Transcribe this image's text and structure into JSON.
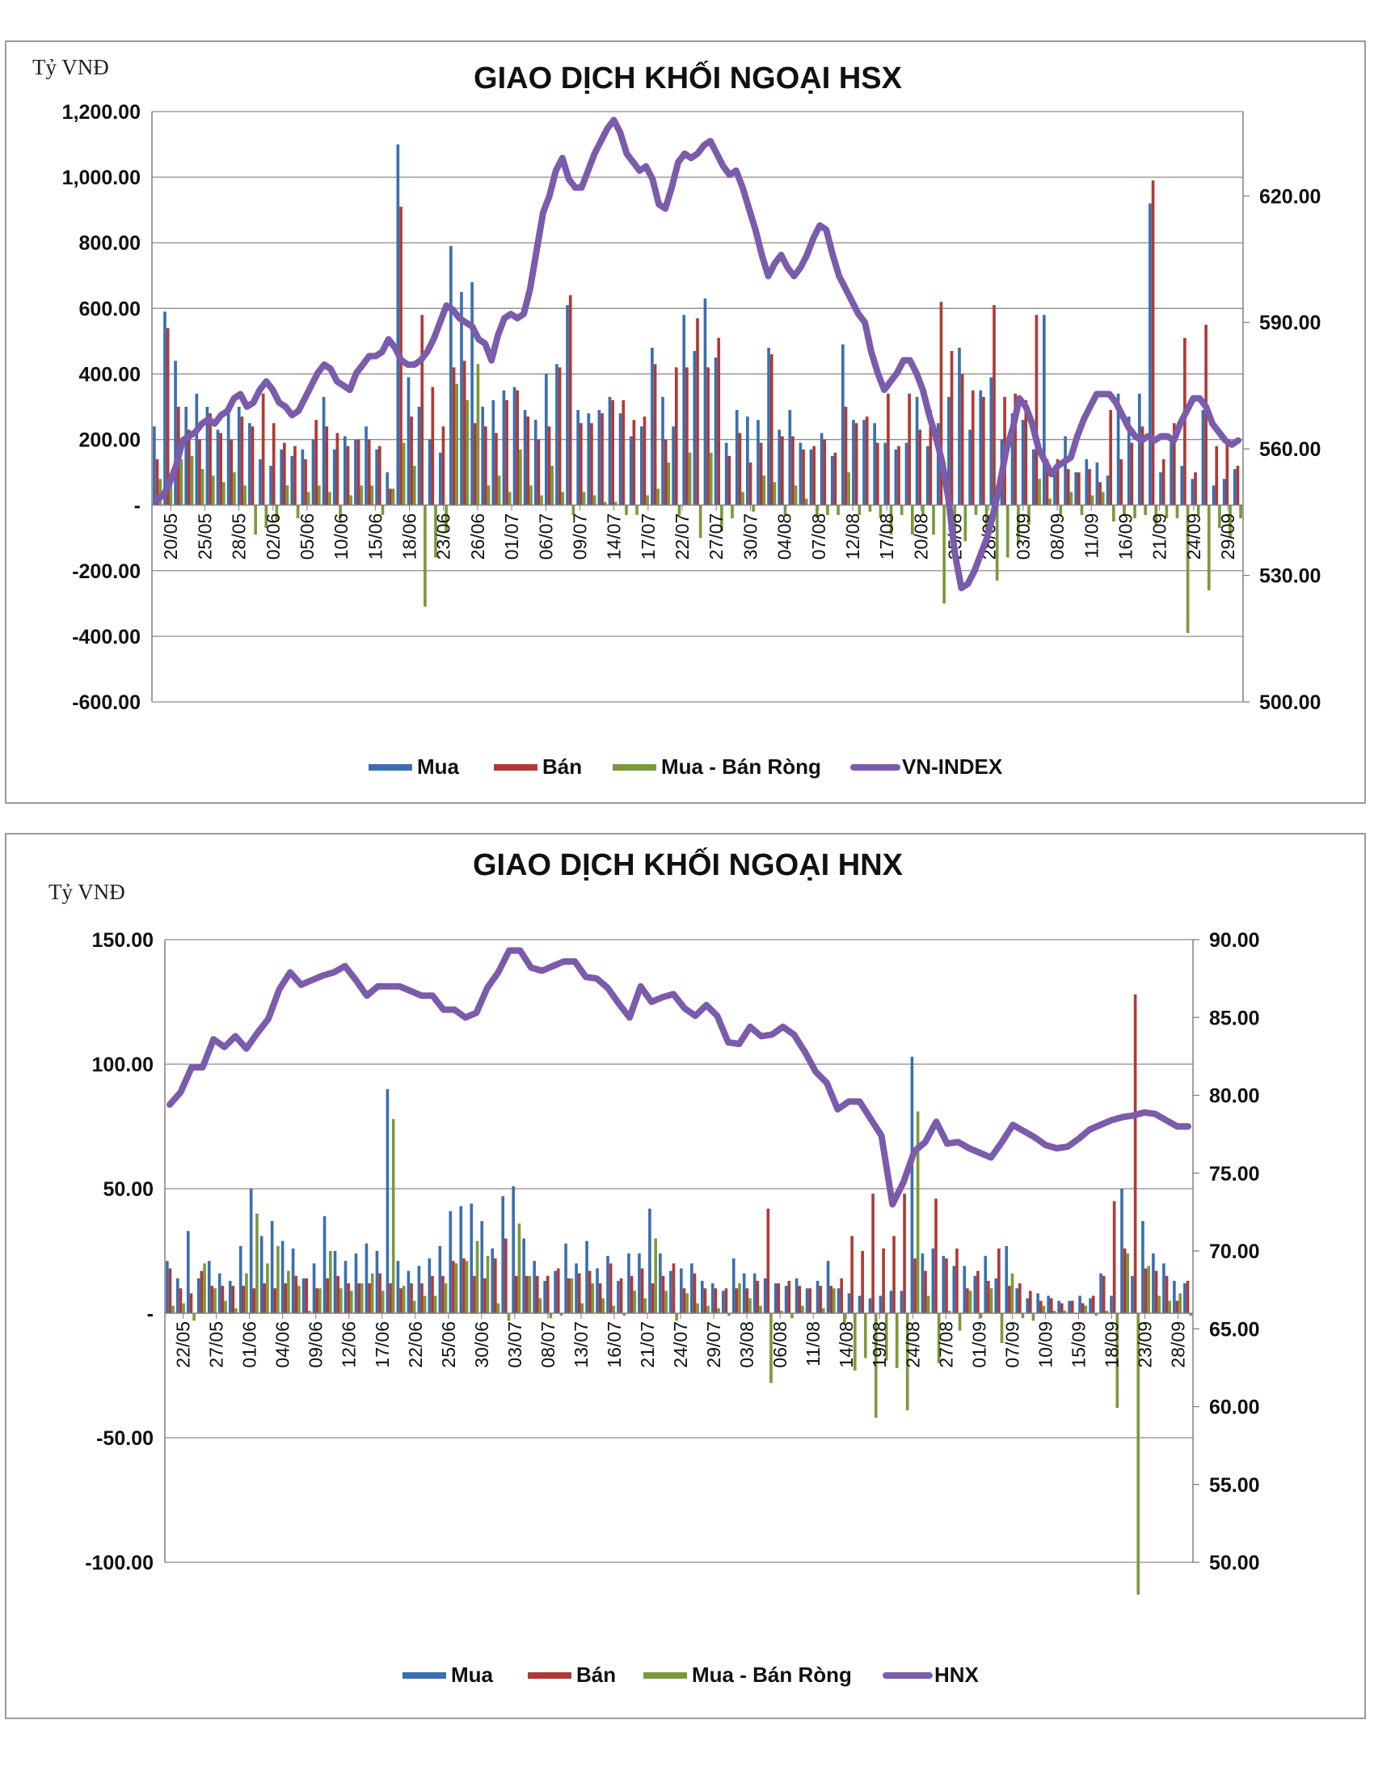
{
  "colors": {
    "mua": "#3a6fb0",
    "ban": "#b03a36",
    "rong": "#7a9a3a",
    "index": "#7b5bab",
    "grid": "#8c8c8c",
    "axis": "#808080"
  },
  "chart_data": [
    {
      "type": "bar",
      "title": "GIAO DỊCH KHỐI NGOẠI HSX",
      "unit_label": "Tỷ VNĐ",
      "ylim": [
        -600,
        1200
      ],
      "y_ticks": [
        -600,
        -400,
        -200,
        0,
        200,
        400,
        600,
        800,
        1000,
        1200
      ],
      "y_tick_labels": [
        "-600.00",
        "-400.00",
        "-200.00",
        "-",
        "200.00",
        "400.00",
        "600.00",
        "800.00",
        "1,000.00",
        "1,200.00"
      ],
      "y2lim": [
        500,
        640
      ],
      "y2_ticks": [
        500,
        530,
        560,
        590,
        620
      ],
      "y2_tick_labels": [
        "500.00",
        "530.00",
        "560.00",
        "590.00",
        "620.00"
      ],
      "x_tick_labels": [
        "20/05",
        "25/05",
        "28/05",
        "02/06",
        "05/06",
        "10/06",
        "15/06",
        "18/06",
        "23/06",
        "26/06",
        "01/07",
        "06/07",
        "09/07",
        "14/07",
        "17/07",
        "22/07",
        "27/07",
        "30/07",
        "04/08",
        "07/08",
        "12/08",
        "17/08",
        "20/08",
        "25/08",
        "28/08",
        "03/09",
        "08/09",
        "11/09",
        "16/09",
        "21/09",
        "24/09",
        "29/09"
      ],
      "grid": true,
      "legend_position": "bottom",
      "legend": [
        "Mua",
        "Bán",
        "Mua - Bán Ròng",
        "VN-INDEX"
      ],
      "series": [
        {
          "name": "Mua",
          "kind": "bar",
          "values": [
            240,
            590,
            440,
            300,
            340,
            300,
            230,
            280,
            300,
            250,
            140,
            120,
            170,
            150,
            170,
            200,
            330,
            170,
            210,
            200,
            240,
            170,
            100,
            1100,
            390,
            300,
            200,
            160,
            790,
            650,
            680,
            300,
            320,
            350,
            360,
            290,
            260,
            400,
            430,
            610,
            290,
            280,
            290,
            330,
            280,
            210,
            240,
            480,
            330,
            240,
            580,
            470,
            630,
            450,
            190,
            290,
            270,
            260,
            480,
            230,
            290,
            190,
            170,
            220,
            150,
            490,
            260,
            260,
            250,
            190,
            170,
            190,
            330,
            180,
            250,
            330,
            480,
            230,
            350,
            390,
            200,
            280,
            260,
            170,
            580,
            120,
            210,
            100,
            140,
            130,
            90,
            340,
            270,
            340,
            920,
            100,
            200,
            120,
            80,
            290,
            60,
            80,
            110
          ]
        },
        {
          "name": "Bán",
          "kind": "bar",
          "values": [
            140,
            540,
            300,
            230,
            200,
            280,
            220,
            200,
            270,
            240,
            340,
            250,
            190,
            180,
            140,
            260,
            240,
            220,
            180,
            200,
            200,
            180,
            50,
            910,
            270,
            580,
            360,
            240,
            420,
            440,
            250,
            240,
            220,
            320,
            350,
            270,
            200,
            240,
            420,
            640,
            250,
            250,
            280,
            320,
            320,
            260,
            270,
            430,
            200,
            420,
            420,
            570,
            420,
            510,
            150,
            220,
            130,
            190,
            460,
            210,
            210,
            170,
            180,
            200,
            160,
            300,
            250,
            270,
            190,
            340,
            180,
            340,
            230,
            290,
            620,
            470,
            400,
            350,
            330,
            610,
            330,
            340,
            320,
            580,
            140,
            140,
            110,
            100,
            110,
            70,
            290,
            140,
            190,
            240,
            990,
            140,
            250,
            510,
            100,
            550,
            180,
            200,
            120
          ]
        },
        {
          "name": "Mua - Bán Ròng",
          "kind": "bar",
          "values": [
            80,
            60,
            140,
            150,
            110,
            90,
            70,
            100,
            60,
            -90,
            -70,
            -50,
            60,
            -40,
            40,
            60,
            40,
            -40,
            30,
            60,
            60,
            -30,
            50,
            190,
            120,
            -310,
            -160,
            -80,
            370,
            320,
            430,
            60,
            90,
            40,
            170,
            60,
            30,
            120,
            40,
            -30,
            40,
            30,
            10,
            10,
            -30,
            -30,
            30,
            50,
            130,
            -30,
            160,
            -100,
            160,
            -80,
            -40,
            40,
            -20,
            90,
            70,
            -30,
            60,
            20,
            -40,
            -30,
            -30,
            100,
            -30,
            -20,
            -40,
            -90,
            -30,
            -90,
            -30,
            -90,
            -300,
            -110,
            -110,
            -30,
            -100,
            -230,
            -160,
            -120,
            -60,
            80,
            20,
            -30,
            40,
            -30,
            30,
            40,
            -50,
            -30,
            -40,
            -30,
            -60,
            -40,
            -40,
            -390,
            -30,
            -260,
            -70,
            -100,
            -40
          ]
        },
        {
          "name": "VN-INDEX",
          "kind": "line",
          "axis": "secondary",
          "values": [
            548,
            549,
            552,
            556,
            562,
            563,
            564,
            566,
            567,
            566,
            568,
            569,
            572,
            573,
            570,
            571,
            574,
            576,
            574,
            571,
            570,
            568,
            569,
            572,
            575,
            578,
            580,
            579,
            576,
            575,
            574,
            578,
            580,
            582,
            582,
            583,
            586,
            584,
            581,
            580,
            580,
            581,
            583,
            586,
            590,
            594,
            593,
            591,
            590,
            589,
            586,
            585,
            581,
            587,
            591,
            592,
            591,
            592,
            598,
            607,
            616,
            620,
            626,
            629,
            624,
            622,
            622,
            626,
            630,
            633,
            636,
            638,
            635,
            630,
            628,
            626,
            627,
            624,
            618,
            617,
            622,
            628,
            630,
            629,
            630,
            632,
            633,
            630,
            627,
            625,
            626,
            622,
            617,
            612,
            606,
            601,
            604,
            606,
            603,
            601,
            603,
            606,
            610,
            613,
            612,
            606,
            601,
            598,
            595,
            592,
            590,
            583,
            578,
            574,
            576,
            578,
            581,
            581,
            578,
            574,
            568,
            563,
            557,
            548,
            535,
            527,
            528,
            531,
            535,
            539,
            545,
            552,
            560,
            565,
            572,
            570,
            566,
            560,
            557,
            554,
            556,
            557,
            558,
            563,
            567,
            570,
            573,
            573,
            573,
            571,
            568,
            565,
            563,
            562,
            563,
            562,
            563,
            563,
            562,
            566,
            569,
            572,
            572,
            570,
            566,
            564,
            562,
            561,
            562
          ]
        }
      ]
    },
    {
      "type": "bar",
      "title": "GIAO DỊCH KHỐI NGOẠI HNX",
      "unit_label": "Tỷ VNĐ",
      "ylim": [
        -100,
        150
      ],
      "y_ticks": [
        -100,
        -50,
        0,
        50,
        100,
        150
      ],
      "y_tick_labels": [
        "-100.00",
        "-50.00",
        "-",
        "50.00",
        "100.00",
        "150.00"
      ],
      "y2lim": [
        50,
        90
      ],
      "y2_ticks": [
        50,
        55,
        60,
        65,
        70,
        75,
        80,
        85,
        90
      ],
      "y2_tick_labels": [
        "50.00",
        "55.00",
        "60.00",
        "65.00",
        "70.00",
        "75.00",
        "80.00",
        "85.00",
        "90.00"
      ],
      "x_tick_labels": [
        "22/05",
        "27/05",
        "01/06",
        "04/06",
        "09/06",
        "12/06",
        "17/06",
        "22/06",
        "25/06",
        "30/06",
        "03/07",
        "08/07",
        "13/07",
        "16/07",
        "21/07",
        "24/07",
        "29/07",
        "03/08",
        "06/08",
        "11/08",
        "14/08",
        "19/08",
        "24/08",
        "27/08",
        "01/09",
        "07/09",
        "10/09",
        "15/09",
        "18/09",
        "23/09",
        "28/09"
      ],
      "grid": true,
      "legend_position": "bottom",
      "legend": [
        "Mua",
        "Bán",
        "Mua - Bán Ròng",
        "HNX"
      ],
      "series": [
        {
          "name": "Mua",
          "kind": "bar",
          "values": [
            21,
            14,
            33,
            14,
            21,
            16,
            13,
            27,
            50,
            31,
            37,
            29,
            26,
            14,
            20,
            39,
            25,
            21,
            24,
            28,
            25,
            90,
            21,
            17,
            19,
            22,
            27,
            41,
            43,
            44,
            37,
            26,
            47,
            51,
            30,
            21,
            13,
            17,
            28,
            20,
            29,
            18,
            23,
            13,
            24,
            24,
            42,
            24,
            17,
            18,
            20,
            13,
            12,
            9,
            22,
            16,
            16,
            14,
            12,
            11,
            14,
            10,
            13,
            21,
            10,
            8,
            7,
            6,
            7,
            9,
            9,
            103,
            24,
            26,
            23,
            19,
            19,
            15,
            23,
            14,
            27,
            10,
            6,
            8,
            7,
            5,
            5,
            7,
            6,
            16,
            7,
            50,
            15,
            37,
            24,
            20,
            13,
            12
          ]
        },
        {
          "name": "Bán",
          "kind": "bar",
          "values": [
            18,
            10,
            8,
            17,
            11,
            11,
            11,
            11,
            10,
            12,
            10,
            12,
            15,
            14,
            10,
            14,
            15,
            12,
            12,
            12,
            16,
            12,
            10,
            12,
            12,
            15,
            15,
            21,
            22,
            15,
            14,
            22,
            30,
            15,
            15,
            15,
            15,
            18,
            14,
            16,
            17,
            12,
            20,
            14,
            15,
            18,
            12,
            15,
            20,
            10,
            16,
            10,
            10,
            10,
            10,
            10,
            13,
            42,
            12,
            13,
            11,
            10,
            11,
            11,
            14,
            31,
            25,
            48,
            26,
            31,
            48,
            22,
            17,
            46,
            22,
            26,
            10,
            17,
            13,
            26,
            11,
            12,
            9,
            5,
            6,
            4,
            5,
            4,
            7,
            15,
            45,
            26,
            128,
            18,
            17,
            15,
            5,
            13
          ]
        },
        {
          "name": "Mua - Bán Ròng",
          "kind": "bar",
          "values": [
            3,
            4,
            -3,
            20,
            10,
            5,
            2,
            16,
            40,
            20,
            27,
            17,
            11,
            1,
            10,
            25,
            10,
            9,
            12,
            16,
            9,
            78,
            11,
            5,
            7,
            7,
            12,
            20,
            21,
            29,
            23,
            4,
            -3,
            36,
            15,
            6,
            -2,
            -1,
            14,
            4,
            12,
            6,
            3,
            -1,
            9,
            6,
            30,
            9,
            -3,
            8,
            4,
            3,
            2,
            -1,
            12,
            6,
            3,
            -28,
            1,
            -2,
            3,
            0,
            2,
            10,
            -4,
            -23,
            -18,
            -42,
            -19,
            -22,
            -39,
            81,
            7,
            -20,
            1,
            -7,
            9,
            -2,
            10,
            -12,
            16,
            -2,
            -3,
            3,
            1,
            1,
            0,
            3,
            -1,
            1,
            -38,
            24,
            -113,
            19,
            7,
            5,
            8,
            -1
          ]
        },
        {
          "name": "HNX",
          "kind": "line",
          "axis": "secondary",
          "values": [
            79.4,
            80.2,
            81.8,
            81.8,
            83.6,
            83.1,
            83.8,
            83.0,
            84.0,
            84.9,
            86.8,
            87.9,
            87.1,
            87.4,
            87.7,
            87.9,
            88.3,
            87.4,
            86.4,
            87.0,
            87.0,
            87.0,
            86.7,
            86.4,
            86.4,
            85.5,
            85.5,
            85.0,
            85.3,
            86.9,
            87.9,
            89.3,
            89.3,
            88.2,
            88.0,
            88.3,
            88.6,
            88.6,
            87.6,
            87.5,
            86.9,
            85.9,
            85.0,
            87.0,
            86.0,
            86.3,
            86.5,
            85.6,
            85.1,
            85.8,
            85.1,
            83.4,
            83.3,
            84.4,
            83.8,
            83.9,
            84.4,
            83.9,
            82.8,
            81.5,
            80.8,
            79.1,
            79.6,
            79.6,
            78.5,
            77.4,
            73.0,
            74.4,
            76.4,
            77.0,
            78.3,
            76.9,
            77.0,
            76.6,
            76.3,
            76.0,
            77.0,
            78.1,
            77.7,
            77.3,
            76.8,
            76.6,
            76.7,
            77.2,
            77.8,
            78.1,
            78.4,
            78.6,
            78.7,
            78.9,
            78.8,
            78.4,
            78.0,
            78.0
          ]
        }
      ]
    }
  ]
}
